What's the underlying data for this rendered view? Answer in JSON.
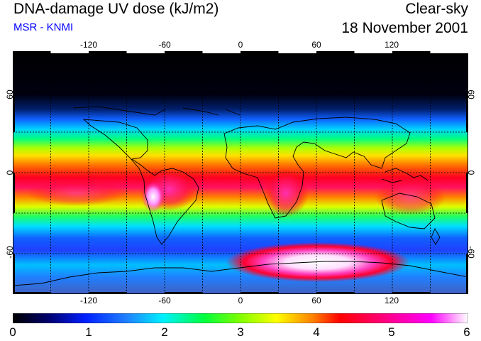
{
  "header": {
    "title": "DNA-damage UV dose (kJ/m2)",
    "subtitle": "MSR - KNMI",
    "condition": "Clear-sky",
    "date": "18 November 2001"
  },
  "map": {
    "lon_range": [
      -180,
      180
    ],
    "lat_range": [
      -90,
      90
    ],
    "lon_ticks": [
      "-120",
      "-60",
      "0",
      "60",
      "120"
    ],
    "lat_ticks_left": [
      "60",
      "0",
      "-60"
    ],
    "lat_ticks_right": [
      "60",
      "0",
      "-60"
    ],
    "gridlines": "dotted every 30 degrees"
  },
  "colorbar": {
    "min": 0,
    "max": 6,
    "labels": [
      "0",
      "1",
      "2",
      "3",
      "4",
      "5",
      "6"
    ],
    "colors": [
      "#000000",
      "#0000a0",
      "#2060ff",
      "#00e0ff",
      "#00ff60",
      "#a0ff00",
      "#ffff00",
      "#ff9000",
      "#ff0000",
      "#ff00a0",
      "#ff00ff",
      "#ffffff"
    ]
  }
}
